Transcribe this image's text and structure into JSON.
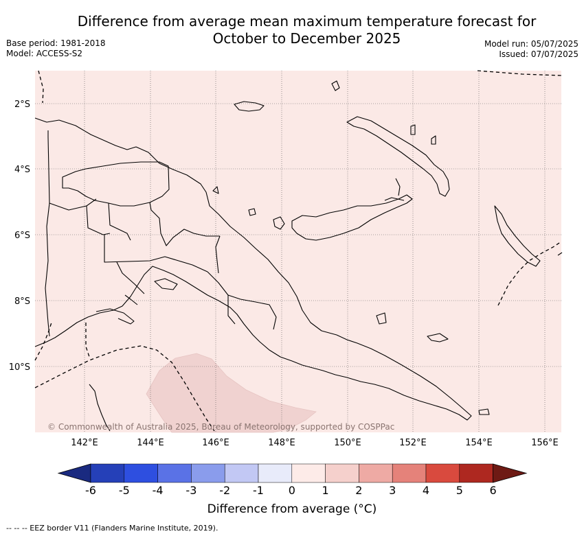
{
  "title_line1": "Difference from average mean maximum temperature forecast for",
  "title_line2": "October to December 2025",
  "base_period": "Base period: 1981-2018",
  "model": "Model: ACCESS-S2",
  "model_run": "Model run: 05/07/2025",
  "issued": "Issued: 07/07/2025",
  "copyright": "© Commonwealth of Australia 2025, Bureau of Meteorology, supported by COSPPac",
  "lat_labels": [
    "2°S",
    "4°S",
    "6°S",
    "8°S",
    "10°S"
  ],
  "lon_labels": [
    "142°E",
    "144°E",
    "146°E",
    "148°E",
    "150°E",
    "152°E",
    "154°E",
    "156°E"
  ],
  "colorbar": {
    "title": "Difference from average (°C)",
    "ticks": [
      "-6",
      "-5",
      "-4",
      "-3",
      "-2",
      "-1",
      "0",
      "1",
      "2",
      "3",
      "4",
      "5",
      "6"
    ],
    "colors": [
      "#1a2a80",
      "#2540b8",
      "#2e4fe0",
      "#5a72e6",
      "#8a9cec",
      "#c2c8f4",
      "#e8ebfa",
      "#fdebe8",
      "#f5d0cc",
      "#eeaaa4",
      "#e5827a",
      "#d94a3e",
      "#ae2820",
      "#6e1a14"
    ]
  },
  "background_anomaly_color": "#fbe9e6",
  "warm_patch_color": "#f0d2d0",
  "footer": "-- -- -- EEZ border V11 (Flanders Marine Institute, 2019)."
}
